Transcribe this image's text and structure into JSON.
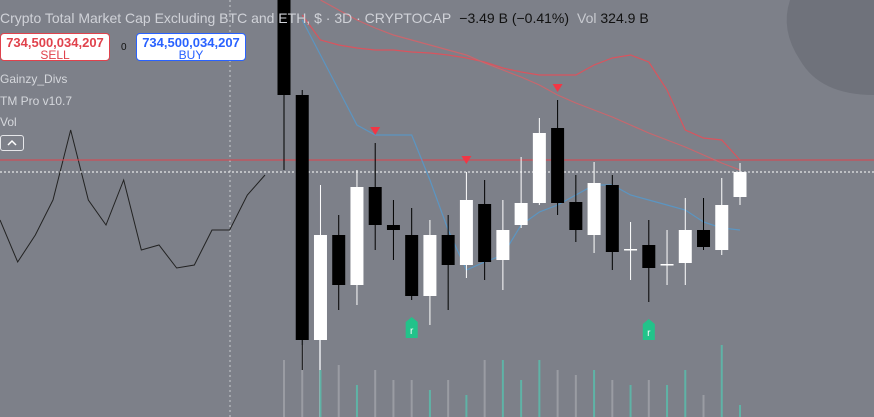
{
  "header": {
    "title": "Crypto Total Market Cap Excluding BTC and ETH, $ · 3D · CRYPTOCAP",
    "change": "−3.49 B (−0.41%)",
    "vol_label": "Vol",
    "vol_value": "324.9 B"
  },
  "trade": {
    "sell_price": "734,500,034,207",
    "sell_label": "SELL",
    "spread": "0",
    "buy_price": "734,500,034,207",
    "buy_label": "BUY"
  },
  "indicators": [
    "Gainzy_Divs",
    "TM Pro v10.7",
    "Vol"
  ],
  "chart_data": {
    "type": "candlestick",
    "ylim": [
      612,
      820.5
    ],
    "up_color": "#ffffff",
    "down_color": "#000000",
    "open": [
      820.5,
      773,
      650.5,
      703,
      678,
      727,
      708,
      703,
      672.5,
      703,
      688,
      718.5,
      690.5,
      708,
      719,
      756.5,
      719.5,
      703,
      728,
      695.5,
      698,
      688,
      689,
      705.5,
      695.5,
      722
    ],
    "high": [
      820.5,
      775.5,
      728,
      713,
      735.5,
      749,
      720.5,
      716.5,
      710.5,
      713,
      734.5,
      730.5,
      720.5,
      742,
      761.5,
      770.5,
      733,
      739.5,
      733,
      709.5,
      710.5,
      705.5,
      721.5,
      721.5,
      731.5,
      739
    ],
    "low": [
      735.5,
      635.5,
      650.5,
      665.5,
      668,
      695.5,
      690.5,
      670.5,
      658,
      665.5,
      681.5,
      680.5,
      675.5,
      706.5,
      718,
      713,
      699.5,
      694,
      685.5,
      680.5,
      669.5,
      678,
      678,
      695.5,
      693,
      718
    ],
    "close": [
      773,
      650.5,
      703,
      678,
      727,
      708,
      705.5,
      672.5,
      703,
      688,
      720.5,
      689.5,
      705.5,
      719,
      754,
      719,
      705.5,
      729,
      694.5,
      696,
      686.5,
      688.5,
      705.5,
      697,
      718,
      734.5
    ],
    "overlays": [
      {
        "color": "#5b95c2",
        "values": [
          null,
          810.5,
          793,
          775.5,
          758,
          753,
          753,
          753,
          730.5,
          705.5,
          685.5,
          689.5,
          693,
          708,
          714.5,
          718,
          723,
          728,
          728,
          723,
          720.5,
          718,
          715.5,
          709.5,
          706.5,
          705.5
        ]
      },
      {
        "color": "#d9545e",
        "values": [
          null,
          813,
          800.5,
          798,
          796.5,
          795.5,
          795.5,
          794.5,
          794,
          793,
          791.5,
          789.5,
          786.5,
          784.5,
          783,
          783,
          783,
          788,
          791.5,
          793,
          789.5,
          775.5,
          755.5,
          751.5,
          750.5,
          740.5
        ]
      },
      {
        "color": "#c9666d",
        "values": [
          null,
          null,
          820.5,
          815.5,
          810.5,
          806.5,
          803,
          800.5,
          798,
          795.5,
          793,
          789,
          785.5,
          782,
          778,
          773,
          769,
          765.5,
          762,
          758,
          754,
          750.5,
          747,
          743,
          739,
          735.5
        ]
      }
    ],
    "hlines": [
      {
        "value": 740.5,
        "color": "#e0424c"
      }
    ],
    "last_price_line": {
      "value": 734.5,
      "color": "#ffffff"
    },
    "signals": {
      "sell": [
        5,
        10,
        15
      ],
      "sell_color": "#f23645",
      "buy": [
        7,
        20
      ],
      "buy_color": "#22c38a",
      "buy_label": "r"
    },
    "oscillator": {
      "color": "#222222",
      "values": [
        710.5,
        689.5,
        703,
        720.5,
        755.5,
        720.5,
        708,
        730.5,
        695.5,
        698,
        686.5,
        688,
        705.5,
        705.5,
        723,
        733
      ]
    },
    "volume": {
      "ylim": [
        0,
        100
      ],
      "up_color": "#5fb3a6",
      "down_color": "#9a9ca3",
      "values": [
        57,
        72,
        47,
        52,
        32,
        47,
        37,
        37,
        27,
        37,
        22,
        57,
        57,
        37,
        57,
        47,
        42,
        47,
        37,
        32,
        37,
        32,
        47,
        22,
        72,
        12
      ]
    }
  }
}
